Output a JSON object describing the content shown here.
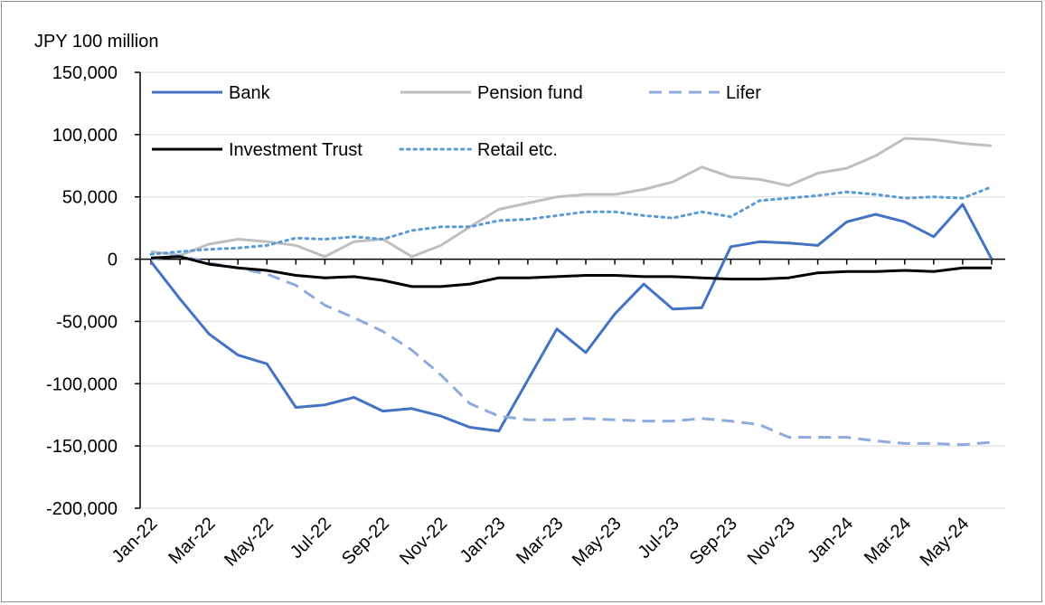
{
  "chart_data": {
    "type": "line",
    "unit_label": "JPY  100 million",
    "ylim": [
      -200000,
      150000
    ],
    "y_ticks": [
      150000,
      100000,
      50000,
      0,
      -50000,
      -100000,
      -150000,
      -200000
    ],
    "y_tick_labels": [
      "150,000",
      "100,000",
      "50,000",
      "0",
      "-50,000",
      "-100,000",
      "-150,000",
      "-200,000"
    ],
    "x": [
      "Jan-22",
      "Feb-22",
      "Mar-22",
      "Apr-22",
      "May-22",
      "Jun-22",
      "Jul-22",
      "Aug-22",
      "Sep-22",
      "Oct-22",
      "Nov-22",
      "Dec-22",
      "Jan-23",
      "Feb-23",
      "Mar-23",
      "Apr-23",
      "May-23",
      "Jun-23",
      "Jul-23",
      "Aug-23",
      "Sep-23",
      "Oct-23",
      "Nov-23",
      "Dec-23",
      "Jan-24",
      "Feb-24",
      "Mar-24",
      "Apr-24",
      "May-24",
      "Jun-24"
    ],
    "x_tick_labels": [
      "Jan-22",
      "Mar-22",
      "May-22",
      "Jul-22",
      "Sep-22",
      "Nov-22",
      "Jan-23",
      "Mar-23",
      "May-23",
      "Jul-23",
      "Sep-23",
      "Nov-23",
      "Jan-24",
      "Mar-24",
      "May-24"
    ],
    "grid": "horizontal",
    "legend_position": "top",
    "series": [
      {
        "name": "Bank",
        "style": "solid",
        "color": "#4472c4",
        "values": [
          -2000,
          -32000,
          -60000,
          -77000,
          -84000,
          -119000,
          -117000,
          -111000,
          -122000,
          -120000,
          -126000,
          -135000,
          -138000,
          -97000,
          -56000,
          -75000,
          -44000,
          -20000,
          -40000,
          -39000,
          10000,
          14000,
          13000,
          11000,
          30000,
          36000,
          30000,
          18000,
          44000,
          0
        ]
      },
      {
        "name": "Pension fund",
        "style": "solid",
        "color": "#bfbfbf",
        "values": [
          6000,
          3000,
          12000,
          16000,
          14000,
          11000,
          2000,
          14000,
          16000,
          2000,
          11000,
          26000,
          40000,
          45000,
          50000,
          52000,
          52000,
          56000,
          62000,
          74000,
          66000,
          64000,
          59000,
          69000,
          73000,
          83000,
          97000,
          96000,
          93000,
          91000
        ]
      },
      {
        "name": "Lifer",
        "style": "dashed",
        "color": "#8faadc",
        "values": [
          0,
          3000,
          -3000,
          -7000,
          -12000,
          -21000,
          -37000,
          -47000,
          -58000,
          -73000,
          -93000,
          -116000,
          -126000,
          -129000,
          -129000,
          -128000,
          -129000,
          -130000,
          -130000,
          -128000,
          -130000,
          -133000,
          -143000,
          -143000,
          -143000,
          -146000,
          -148000,
          -148000,
          -149000,
          -147000
        ]
      },
      {
        "name": "Investment Trust",
        "style": "solid",
        "color": "#000000",
        "values": [
          1000,
          2000,
          -4000,
          -7000,
          -9000,
          -13000,
          -15000,
          -14000,
          -17000,
          -22000,
          -22000,
          -20000,
          -15000,
          -15000,
          -14000,
          -13000,
          -13000,
          -14000,
          -14000,
          -15000,
          -16000,
          -16000,
          -15000,
          -11000,
          -10000,
          -10000,
          -9000,
          -10000,
          -7000,
          -7000
        ]
      },
      {
        "name": "Retail etc.",
        "style": "dotted",
        "color": "#5b9bd5",
        "values": [
          4000,
          6000,
          8000,
          9000,
          11000,
          17000,
          16000,
          18000,
          16000,
          23000,
          26000,
          26000,
          31000,
          32000,
          35000,
          38000,
          38000,
          35000,
          33000,
          38000,
          34000,
          47000,
          49000,
          51000,
          54000,
          52000,
          49000,
          50000,
          49000,
          58000
        ]
      }
    ]
  }
}
